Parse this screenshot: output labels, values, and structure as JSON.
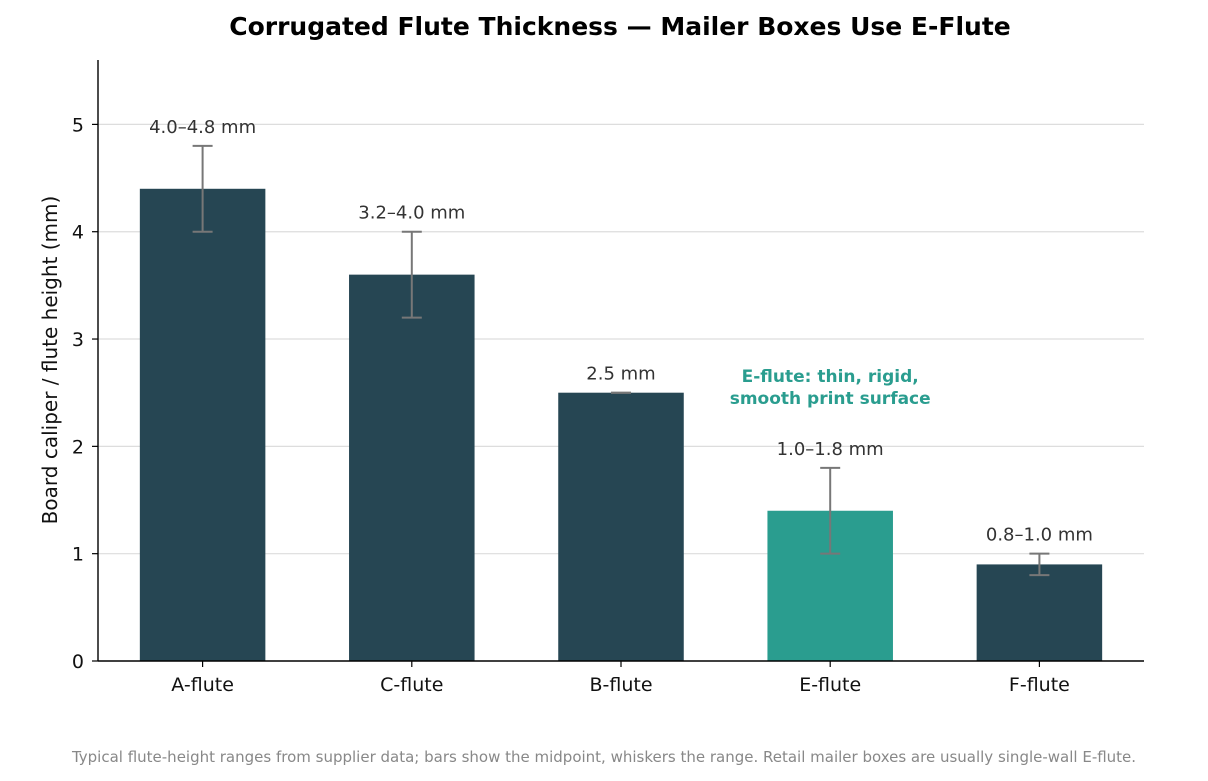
{
  "chart_data": {
    "type": "bar",
    "title": "Corrugated Flute Thickness — Mailer Boxes Use E-Flute",
    "ylabel": "Board caliper / flute height (mm)",
    "xlabel": "",
    "ylim": [
      0,
      5.6
    ],
    "yticks": [
      0,
      1,
      2,
      3,
      4,
      5
    ],
    "grid": "y",
    "categories": [
      "A-flute",
      "C-flute",
      "B-flute",
      "E-flute",
      "F-flute"
    ],
    "values": [
      4.4,
      3.6,
      2.5,
      1.4,
      0.9
    ],
    "ranges": [
      [
        4.0,
        4.8
      ],
      [
        3.2,
        4.0
      ],
      [
        2.5,
        2.5
      ],
      [
        1.0,
        1.8
      ],
      [
        0.8,
        1.0
      ]
    ],
    "data_labels": [
      "4.0–4.8 mm",
      "3.2–4.0 mm",
      "2.5 mm",
      "1.0–1.8 mm",
      "0.8–1.0 mm"
    ],
    "highlight_index": 3,
    "annotation": {
      "lines": [
        "E-flute: thin, rigid,",
        "smooth print surface"
      ],
      "category": "E-flute",
      "y": 2.6
    },
    "footnote": "Typical flute-height ranges from supplier data; bars show the midpoint, whiskers the range. Retail mailer boxes are usually single-wall E-flute."
  },
  "colors": {
    "bar": "#264653",
    "highlight": "#2a9d8f",
    "whisker": "#777777",
    "grid": "#dddddd",
    "axis": "#000000",
    "annotation": "#2a9d8f"
  }
}
